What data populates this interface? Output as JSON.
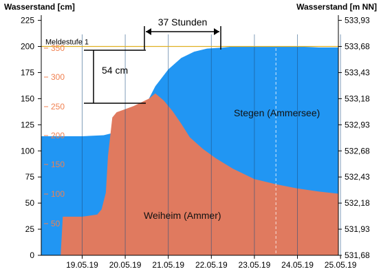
{
  "chart_data": {
    "type": "area",
    "ylabel_left": "Wasserstand [cm]",
    "ylabel_right": "Wasserstand [m NN]",
    "ylim_left": [
      0,
      230
    ],
    "y_ticks_left": [
      0,
      25,
      50,
      75,
      100,
      125,
      150,
      175,
      200,
      225
    ],
    "y_ticks_right": [
      "531,68",
      "531,93",
      "532,18",
      "532,43",
      "532,68",
      "532,93",
      "533,18",
      "533,43",
      "533,68",
      "533,93"
    ],
    "y_ticks_inner": [
      "50",
      "100",
      "150",
      "200",
      "250",
      "300",
      "350"
    ],
    "x_ticks": [
      "19.05.19",
      "20.05.19",
      "21.05.19",
      "22.05.19",
      "23.05.19",
      "24.05.19",
      "25.05.19"
    ],
    "x_range_days": [
      18.55,
      25.45
    ],
    "threshold": {
      "label": "Meldestufe 1",
      "value": 200,
      "color": "#e0b020"
    },
    "annotations": {
      "duration": "37 Stunden",
      "rise": "54 cm"
    },
    "series": [
      {
        "name": "Stegen (Ammersee)",
        "color": "#2196f3",
        "x": [
          18.55,
          19.5,
          20.0,
          20.3,
          20.5,
          20.8,
          21.0,
          21.2,
          21.5,
          21.8,
          22.1,
          22.4,
          22.8,
          23.0,
          23.5,
          24.0,
          24.5,
          25.0,
          25.45
        ],
        "y": [
          114,
          114,
          115,
          118,
          123,
          133,
          146,
          162,
          178,
          189,
          195,
          198,
          199,
          200,
          200,
          200,
          200,
          199,
          199
        ]
      },
      {
        "name": "Weiheim (Ammer)",
        "color": "#e07a5f",
        "x": [
          18.55,
          19.0,
          19.05,
          19.5,
          19.85,
          19.95,
          20.05,
          20.1,
          20.2,
          20.3,
          20.5,
          20.7,
          20.8,
          20.95,
          21.05,
          21.2,
          21.4,
          21.6,
          21.8,
          22.0,
          22.3,
          22.6,
          23.0,
          23.5,
          24.0,
          24.5,
          25.0,
          25.45
        ],
        "y": [
          0,
          0,
          37,
          37,
          39,
          44,
          60,
          95,
          132,
          137,
          140,
          143,
          145,
          148,
          150,
          155,
          148,
          138,
          126,
          113,
          102,
          93,
          83,
          73,
          68,
          64,
          61,
          59
        ]
      }
    ]
  }
}
